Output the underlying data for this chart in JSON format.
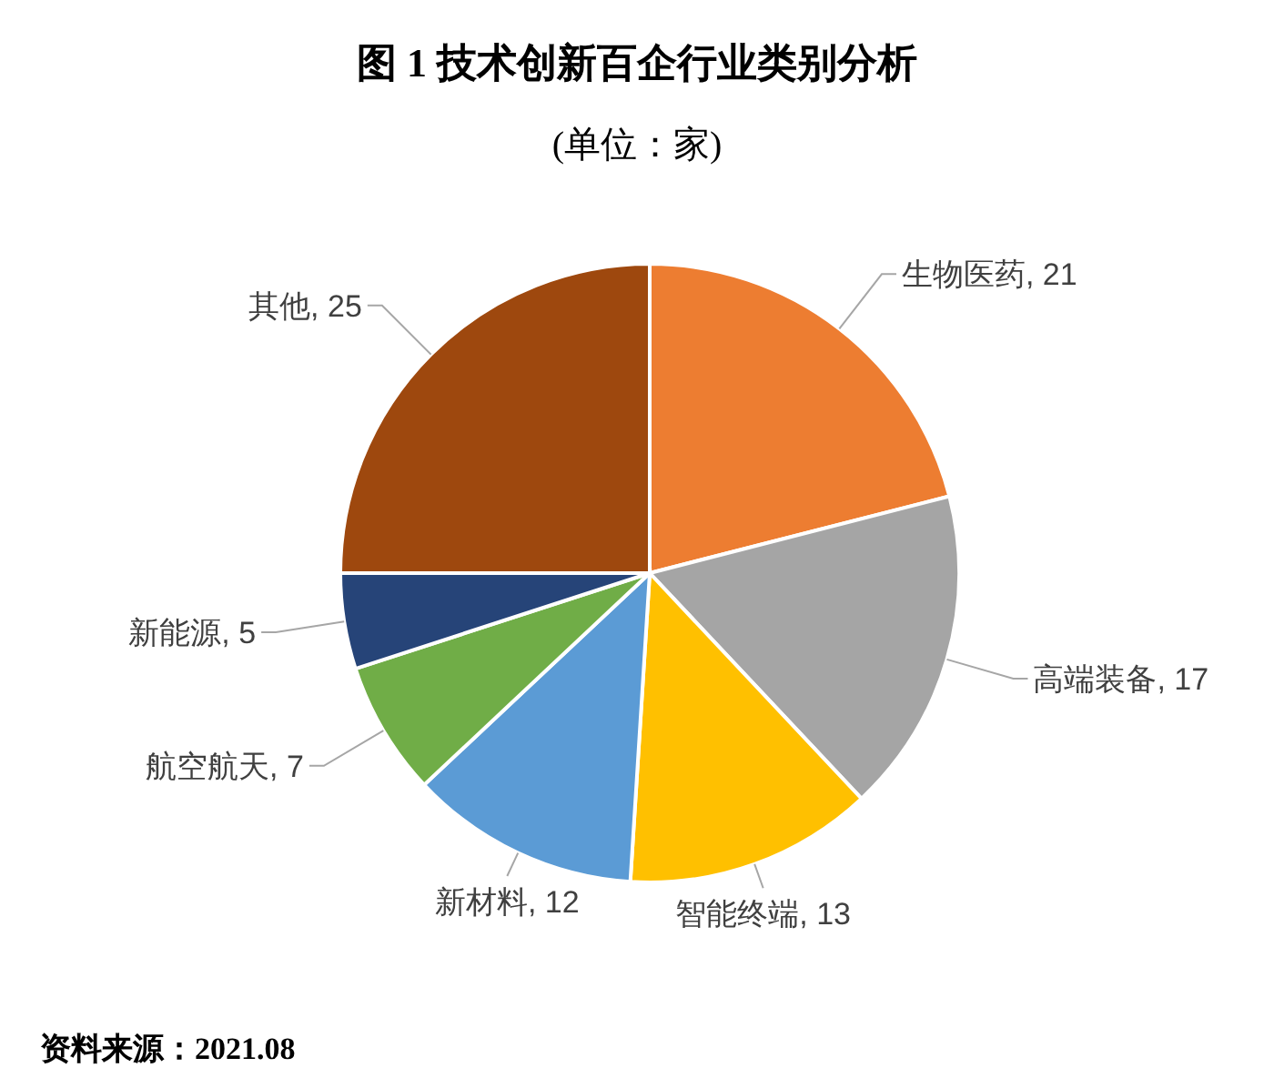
{
  "chart_data": {
    "type": "pie",
    "title": "图 1   技术创新百企行业类别分析",
    "subtitle": "(单位：家)",
    "categories": [
      "生物医药",
      "高端装备",
      "智能终端",
      "新材料",
      "航空航天",
      "新能源",
      "其他"
    ],
    "values": [
      21,
      17,
      13,
      12,
      7,
      5,
      25
    ],
    "colors": [
      "#ed7d31",
      "#a5a5a5",
      "#ffc000",
      "#5b9bd5",
      "#70ad47",
      "#264478",
      "#9e480e"
    ],
    "value_labels": [
      ", 21",
      ", 17",
      ", 13",
      ", 12",
      ", 7",
      ", 5",
      ", 25"
    ],
    "annotations": [
      "资料来源：2021.08"
    ]
  }
}
